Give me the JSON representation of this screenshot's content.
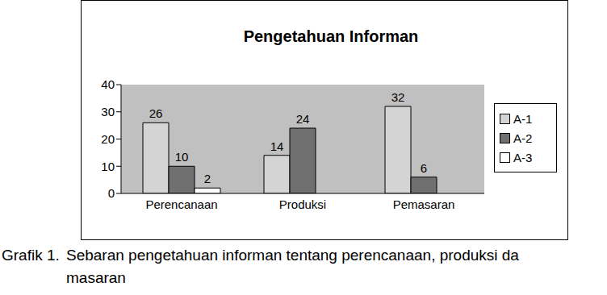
{
  "chart_data": {
    "type": "bar",
    "title": "Pengetahuan Informan",
    "categories": [
      "Perencanaan",
      "Produksi",
      "Pemasaran"
    ],
    "series": [
      {
        "name": "A-1",
        "color": "#d4d4d4",
        "values": [
          26,
          14,
          32
        ]
      },
      {
        "name": "A-2",
        "color": "#707070",
        "values": [
          10,
          24,
          6
        ]
      },
      {
        "name": "A-3",
        "color": "#ffffff",
        "values": [
          2,
          null,
          null
        ]
      }
    ],
    "ylim": [
      0,
      40
    ],
    "yticks": [
      0,
      10,
      20,
      30,
      40
    ],
    "grid": false,
    "data_labels": true,
    "legend": "right",
    "annotations": [
      "Grafik 1.",
      "Sebaran pengetahuan informan tentang perencanaan, produksi da",
      "masaran"
    ]
  }
}
